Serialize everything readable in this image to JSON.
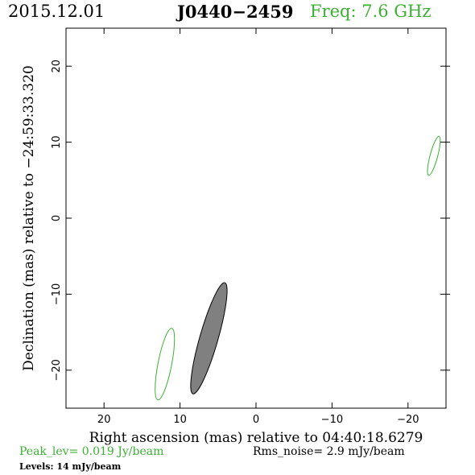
{
  "header": {
    "date": "2015.12.01",
    "source": "J0440−2459",
    "freq": "Freq: 7.6 GHz"
  },
  "footer": {
    "peak": "Peak_lev=  0.019 Jy/beam",
    "rms": "Rms_noise=  2.9 mJy/beam",
    "levels": "Levels:  14 mJy/beam"
  },
  "colors": {
    "contour": "#3cb034",
    "fill": "#808080",
    "axes": "#000000"
  },
  "chart_data": {
    "type": "contour",
    "xlabel": "Right ascension (mas) relative to 04:40:18.6279",
    "ylabel": "Declination (mas) relative to −24:59:33.320",
    "xlim": [
      25,
      -25
    ],
    "ylim": [
      -25,
      25
    ],
    "xticks": [
      20,
      10,
      0,
      -10,
      -20
    ],
    "yticks": [
      20,
      10,
      0,
      -10,
      -20
    ],
    "xtick_labels": [
      "20",
      "10",
      "0",
      "−10",
      "−20"
    ],
    "ytick_labels": [
      "20",
      "10",
      "0",
      "−10",
      "−20"
    ],
    "components": [
      {
        "name": "",
        "kind": "beam",
        "style": "filled",
        "x": 6.2,
        "y": -15.8,
        "major": 15.2,
        "minor": 2.4,
        "pa_deg": 16
      },
      {
        "name": "",
        "kind": "contour",
        "style": "outline",
        "x": 12.0,
        "y": -19.2,
        "major": 9.6,
        "minor": 1.8,
        "pa_deg": 11
      },
      {
        "name": "",
        "kind": "contour",
        "style": "outline",
        "x": -23.4,
        "y": 8.2,
        "major": 5.3,
        "minor": 1.0,
        "pa_deg": 15
      }
    ]
  }
}
